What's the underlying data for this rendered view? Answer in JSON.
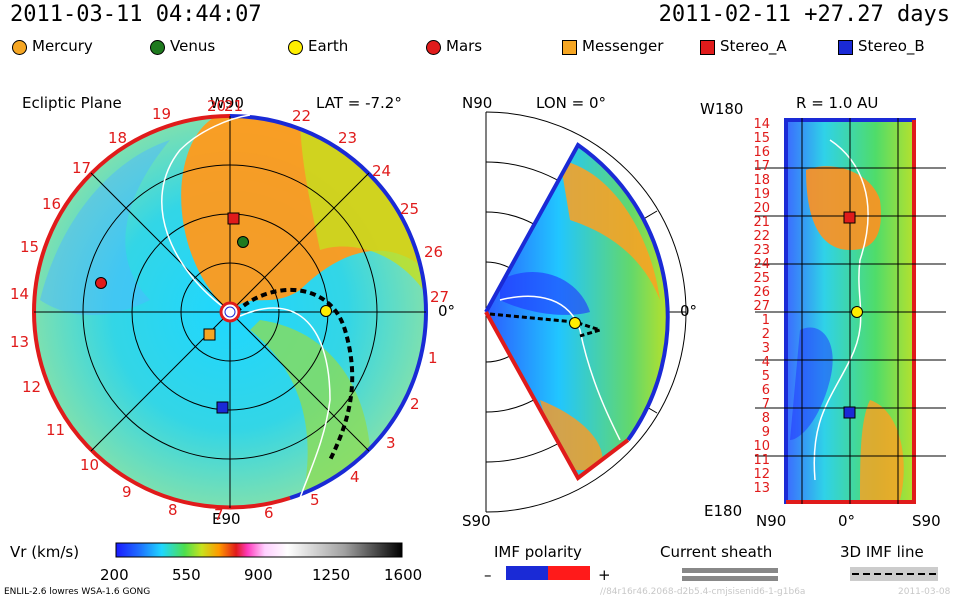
{
  "header": {
    "datetime": "2011-03-11 04:44:07",
    "reference": "2011-02-11 +27.27 days"
  },
  "legend": {
    "planets": [
      {
        "label": "Mercury",
        "color": "#f5a623"
      },
      {
        "label": "Venus",
        "color": "#1f7a1f"
      },
      {
        "label": "Earth",
        "color": "#ffee00"
      },
      {
        "label": "Mars",
        "color": "#e01b1b"
      }
    ],
    "spacecraft": [
      {
        "label": "Messenger",
        "color": "#f5a623"
      },
      {
        "label": "Stereo_A",
        "color": "#e01b1b"
      },
      {
        "label": "Stereo_B",
        "color": "#1a2ad6"
      }
    ]
  },
  "panels": {
    "ecliptic": {
      "title": "Ecliptic Plane",
      "lat": "LAT = -7.2°",
      "top": "W90",
      "bottom": "E90",
      "right": "0°",
      "carrington": [
        "14",
        "15",
        "16",
        "17",
        "18",
        "19",
        "20",
        "21",
        "22",
        "23",
        "24",
        "25",
        "26",
        "27",
        "1",
        "2",
        "3",
        "4",
        "5",
        "6",
        "7",
        "8",
        "9",
        "10",
        "11",
        "12",
        "13"
      ]
    },
    "meridional": {
      "top": "N90",
      "lon": "LON = 0°",
      "bottom": "S90",
      "right": "0°"
    },
    "radial": {
      "r": "R = 1.0 AU",
      "top": "W180",
      "bottom": "E180",
      "x_left": "N90",
      "x_mid": "0°",
      "x_right": "S90",
      "rows": [
        "14",
        "15",
        "16",
        "17",
        "18",
        "19",
        "20",
        "21",
        "22",
        "23",
        "24",
        "25",
        "26",
        "27",
        "1",
        "2",
        "3",
        "4",
        "5",
        "6",
        "7",
        "8",
        "9",
        "10",
        "11",
        "12",
        "13"
      ]
    }
  },
  "colorbar": {
    "label": "Vr (km/s)",
    "ticks": [
      "200",
      "550",
      "900",
      "1250",
      "1600"
    ]
  },
  "imf_polarity": {
    "label": "IMF polarity",
    "minus": "–",
    "plus": "+"
  },
  "current_sheath": {
    "label": "Current sheath"
  },
  "imf_line": {
    "label": "3D IMF line"
  },
  "footer": {
    "model": "ENLIL-2.6 lowres WSA-1.6 GONG",
    "run_id": "//84r16r46.2068-d2b5.4-cmjsisenid6-1-g1b6a",
    "run_date": "2011-03-08"
  }
}
